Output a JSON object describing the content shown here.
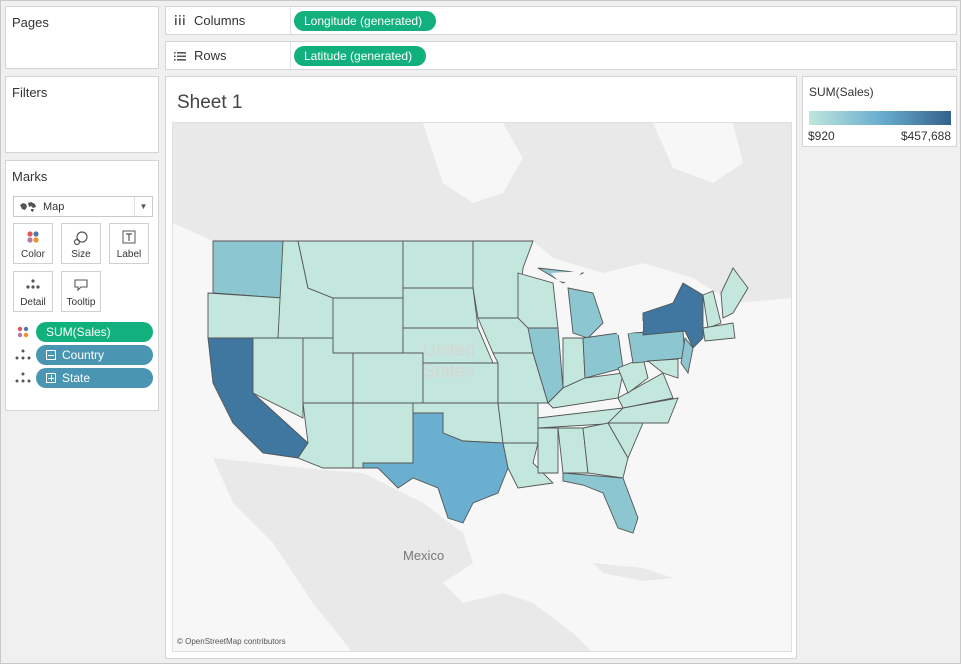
{
  "cards": {
    "pages": "Pages",
    "filters": "Filters",
    "marks": "Marks"
  },
  "marks": {
    "type": "Map",
    "buttons": [
      "Color",
      "Size",
      "Label",
      "Detail",
      "Tooltip"
    ],
    "fields": [
      {
        "label": "SUM(Sales)",
        "role": "color"
      },
      {
        "label": "Country",
        "role": "detail",
        "expand": "minus"
      },
      {
        "label": "State",
        "role": "detail",
        "expand": "plus"
      }
    ]
  },
  "shelves": {
    "columns_label": "Columns",
    "columns_pill": "Longitude (generated)",
    "rows_label": "Rows",
    "rows_pill": "Latitude (generated)"
  },
  "sheet": {
    "title": "Sheet 1",
    "attribution": "© OpenStreetMap contributors",
    "map_labels": {
      "country_us": "United States",
      "country_mx": "Mexico"
    }
  },
  "legend": {
    "title": "SUM(Sales)",
    "min": "$920",
    "max": "$457,688",
    "colors": [
      "#c0e6dc",
      "#6aaed0",
      "#33628c"
    ]
  },
  "colors": {
    "green_pill": "#12b07c",
    "blue_pill": "#4a96b2",
    "state_light": "#c3e6dd",
    "state_mid": "#8cc6d1",
    "state_dark": "#3f77a0",
    "state_darkest": "#33628c",
    "land": "#e9e9e9",
    "water": "#f7f7f7"
  }
}
